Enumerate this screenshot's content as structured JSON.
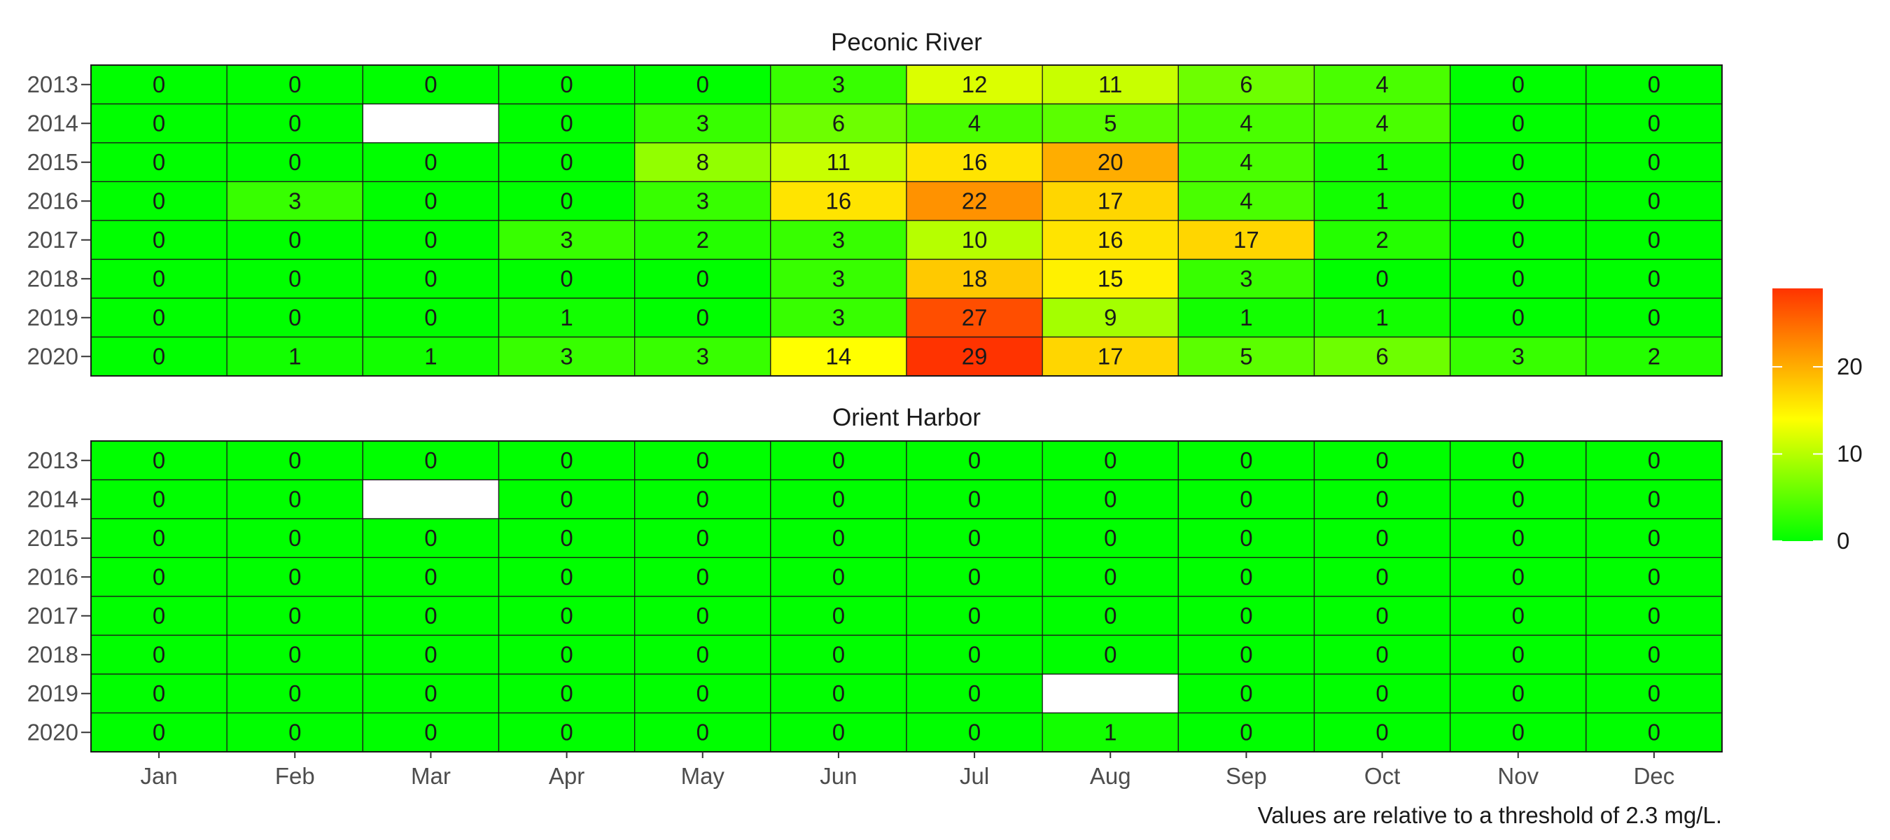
{
  "chart_data": {
    "type": "heatmap",
    "caption": "Values are relative to a threshold of 2.3 mg/L.",
    "months": [
      "Jan",
      "Feb",
      "Mar",
      "Apr",
      "May",
      "Jun",
      "Jul",
      "Aug",
      "Sep",
      "Oct",
      "Nov",
      "Dec"
    ],
    "years": [
      "2013",
      "2014",
      "2015",
      "2016",
      "2017",
      "2018",
      "2019",
      "2020"
    ],
    "color_scale": {
      "min": 0,
      "max": 29,
      "ticks": [
        0,
        10,
        20
      ],
      "stops": [
        {
          "value": 0,
          "color": "#00ff00"
        },
        {
          "value": 14,
          "color": "#ffff00"
        },
        {
          "value": 29,
          "color": "#ff3300"
        }
      ],
      "missing_color": "#ffffff"
    },
    "panels": [
      {
        "title": "Peconic River",
        "values": [
          [
            0,
            0,
            0,
            0,
            0,
            3,
            12,
            11,
            6,
            4,
            0,
            0
          ],
          [
            0,
            0,
            null,
            0,
            3,
            6,
            4,
            5,
            4,
            4,
            0,
            0
          ],
          [
            0,
            0,
            0,
            0,
            8,
            11,
            16,
            20,
            4,
            1,
            0,
            0
          ],
          [
            0,
            3,
            0,
            0,
            3,
            16,
            22,
            17,
            4,
            1,
            0,
            0
          ],
          [
            0,
            0,
            0,
            3,
            2,
            3,
            10,
            16,
            17,
            2,
            0,
            0
          ],
          [
            0,
            0,
            0,
            0,
            0,
            3,
            18,
            15,
            3,
            0,
            0,
            0
          ],
          [
            0,
            0,
            0,
            1,
            0,
            3,
            27,
            9,
            1,
            1,
            0,
            0
          ],
          [
            0,
            1,
            1,
            3,
            3,
            14,
            29,
            17,
            5,
            6,
            3,
            2
          ]
        ]
      },
      {
        "title": "Orient Harbor",
        "values": [
          [
            0,
            0,
            0,
            0,
            0,
            0,
            0,
            0,
            0,
            0,
            0,
            0
          ],
          [
            0,
            0,
            null,
            0,
            0,
            0,
            0,
            0,
            0,
            0,
            0,
            0
          ],
          [
            0,
            0,
            0,
            0,
            0,
            0,
            0,
            0,
            0,
            0,
            0,
            0
          ],
          [
            0,
            0,
            0,
            0,
            0,
            0,
            0,
            0,
            0,
            0,
            0,
            0
          ],
          [
            0,
            0,
            0,
            0,
            0,
            0,
            0,
            0,
            0,
            0,
            0,
            0
          ],
          [
            0,
            0,
            0,
            0,
            0,
            0,
            0,
            0,
            0,
            0,
            0,
            0
          ],
          [
            0,
            0,
            0,
            0,
            0,
            0,
            0,
            null,
            0,
            0,
            0,
            0
          ],
          [
            0,
            0,
            0,
            0,
            0,
            0,
            0,
            1,
            0,
            0,
            0,
            0
          ]
        ]
      }
    ]
  }
}
